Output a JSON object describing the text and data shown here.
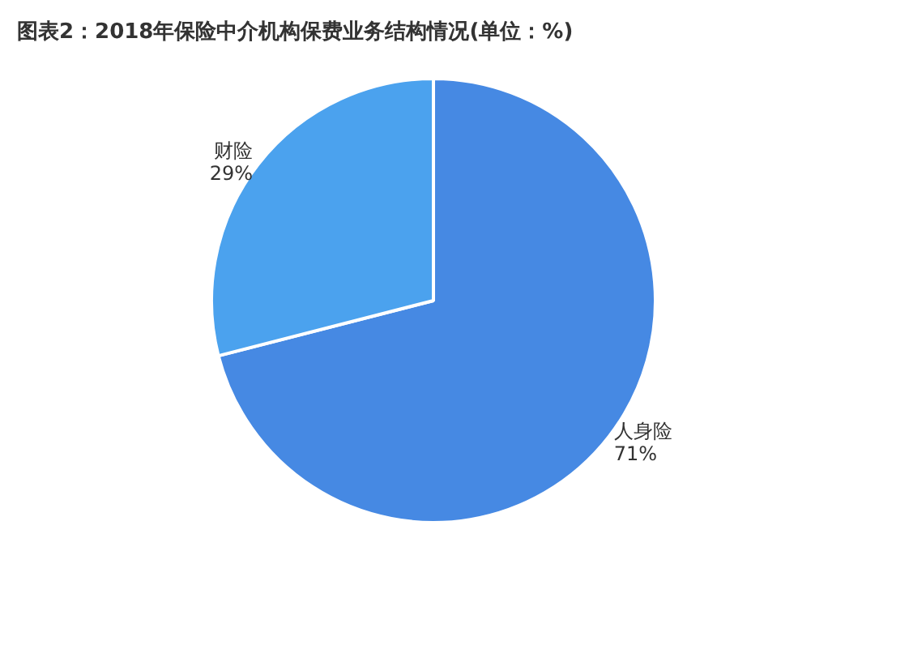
{
  "chart_data": {
    "type": "pie",
    "title": "图表2：2018年保险中介机构保费业务结构情况(单位：%)",
    "categories": [
      "人身险",
      "财险"
    ],
    "values": [
      71,
      29
    ],
    "value_labels": [
      "71%",
      "29%"
    ],
    "colors": [
      "#4689e3",
      "#4ba2ee"
    ]
  }
}
